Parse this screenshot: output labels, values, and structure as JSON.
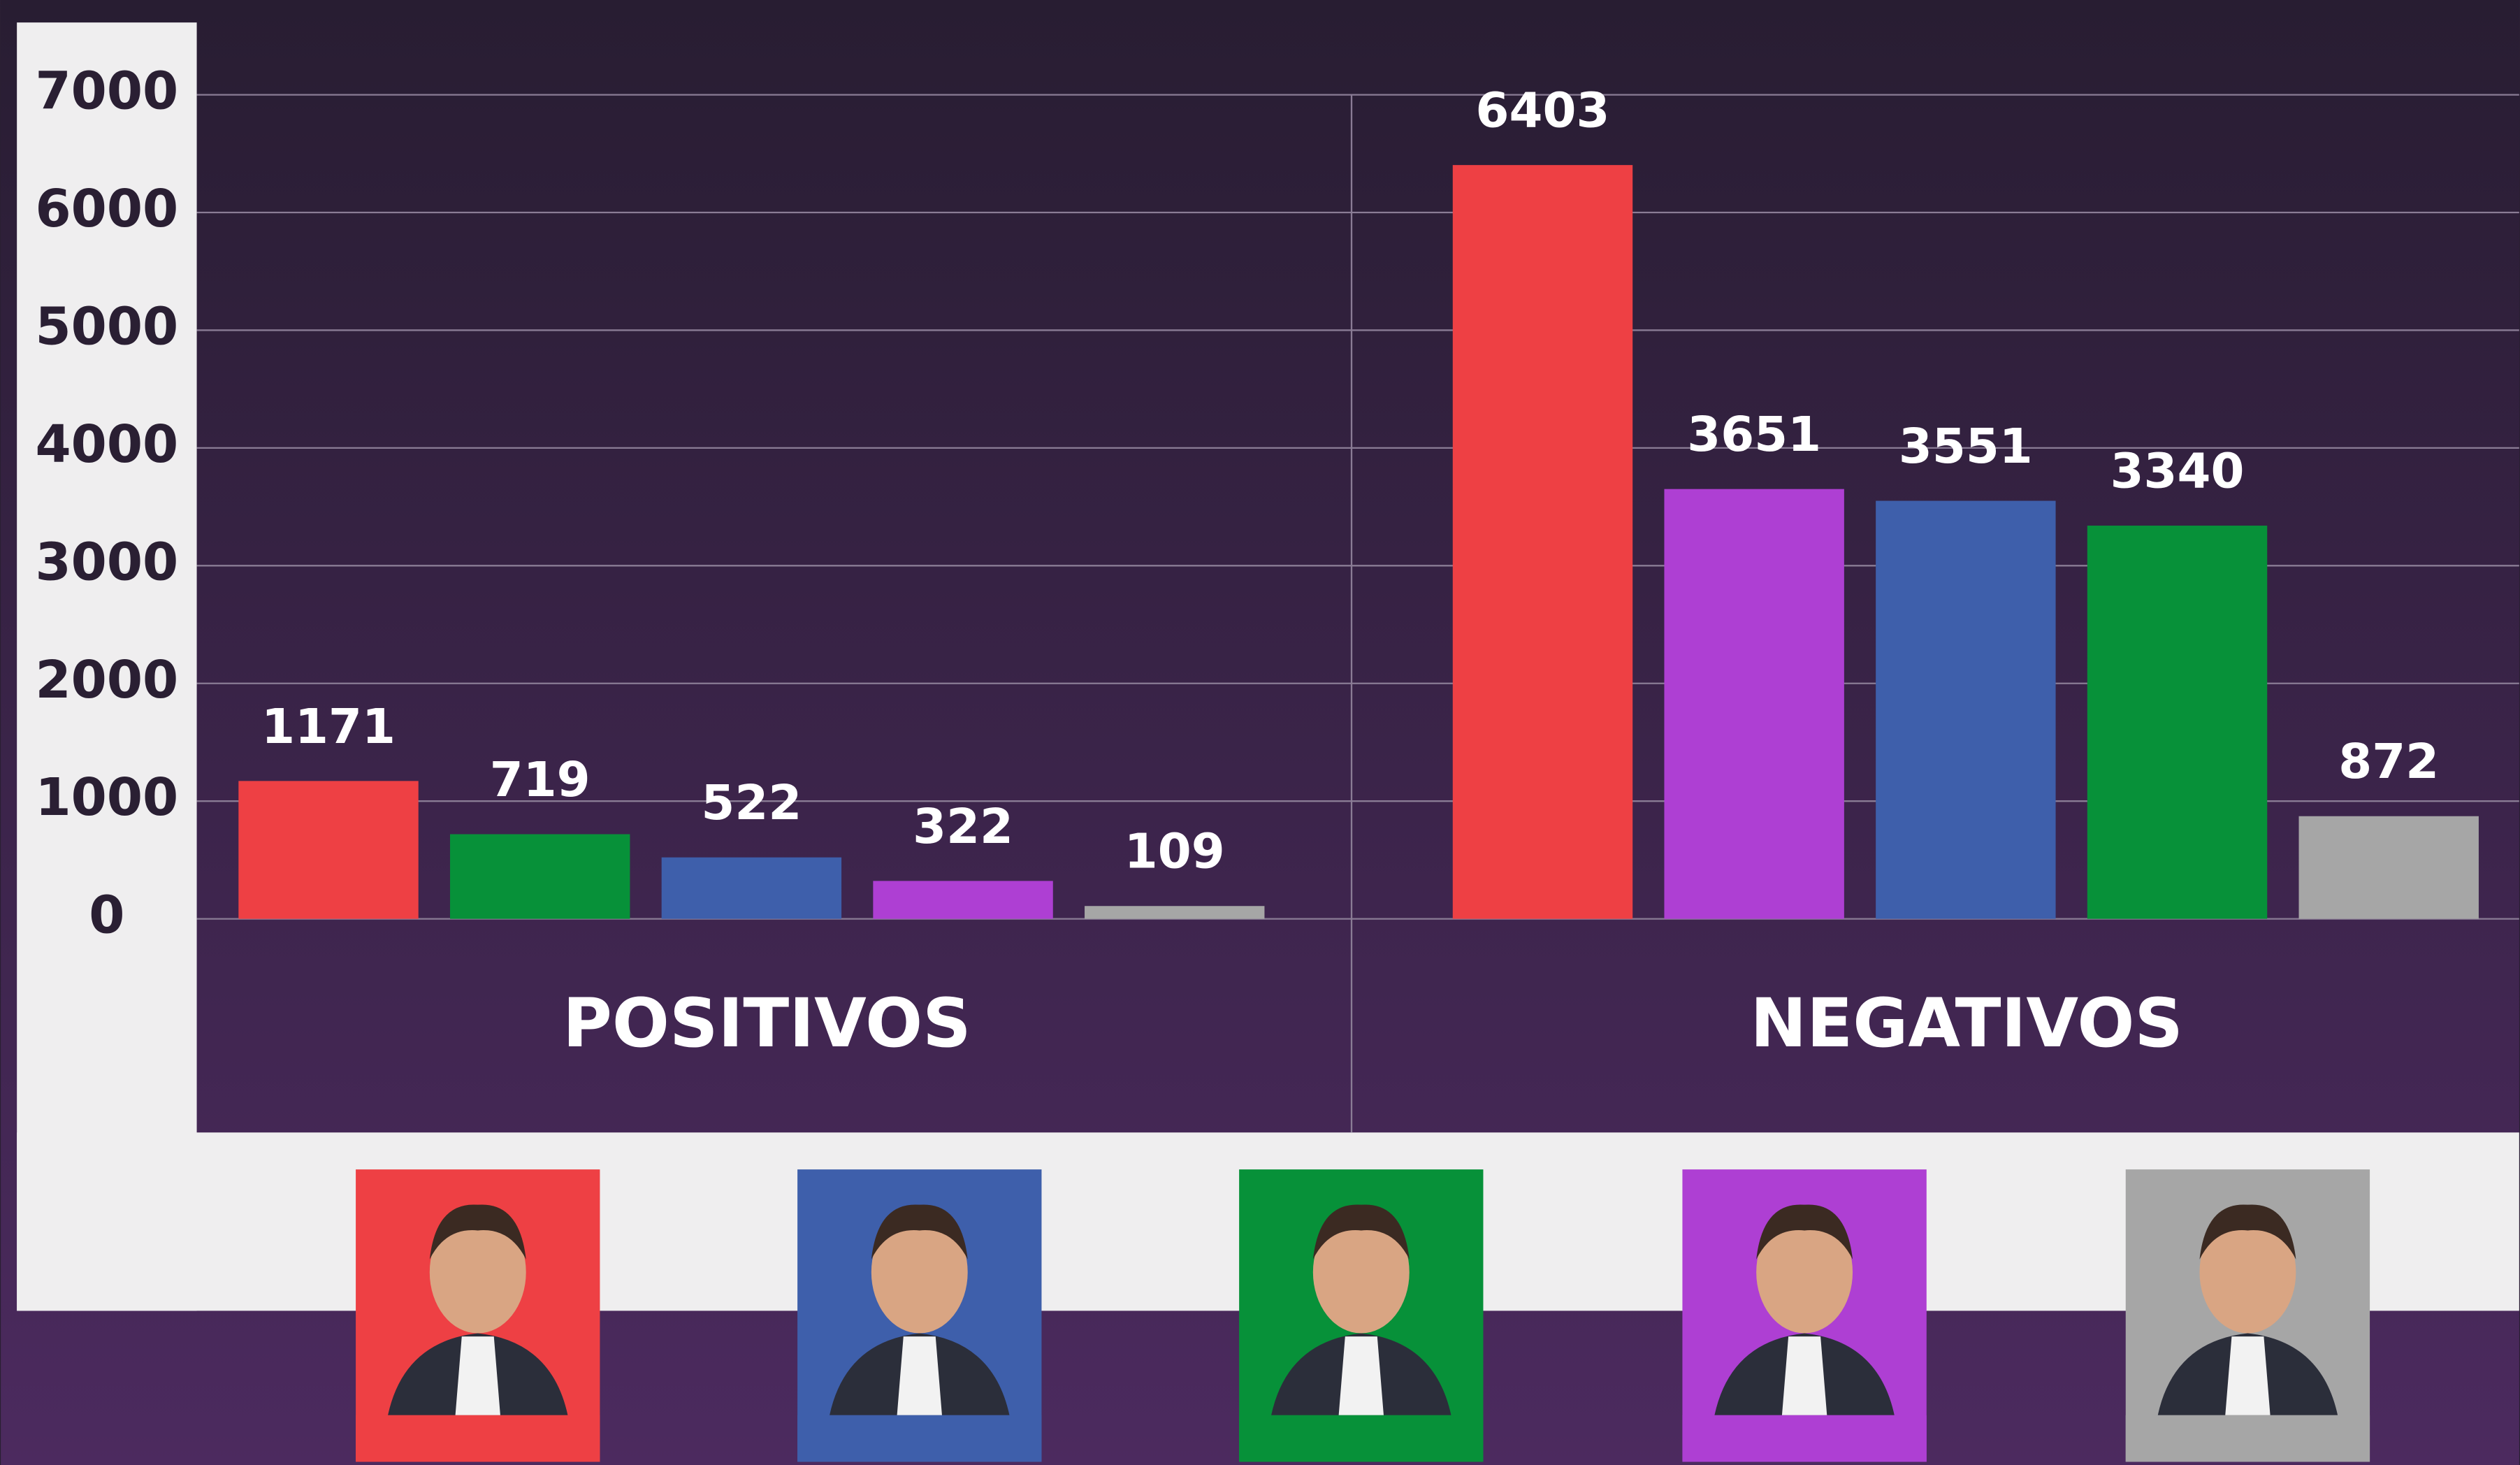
{
  "chart_data": {
    "type": "bar",
    "ylim": [
      0,
      7000
    ],
    "yticks": [
      0,
      1000,
      2000,
      3000,
      4000,
      5000,
      6000,
      7000
    ],
    "grid": true,
    "groups": [
      {
        "name": "POSITIVOS",
        "values": [
          1171,
          719,
          522,
          322,
          109
        ],
        "colors": [
          "#ee4044",
          "#079139",
          "#3e5fab",
          "#ae3fd3",
          "#a6a6a6"
        ]
      },
      {
        "name": "NEGATIVOS",
        "values": [
          6403,
          3651,
          3551,
          3340,
          872
        ],
        "colors": [
          "#ee4044",
          "#ae3fd3",
          "#3e5fab",
          "#079139",
          "#a6a6a6"
        ]
      }
    ]
  }
}
